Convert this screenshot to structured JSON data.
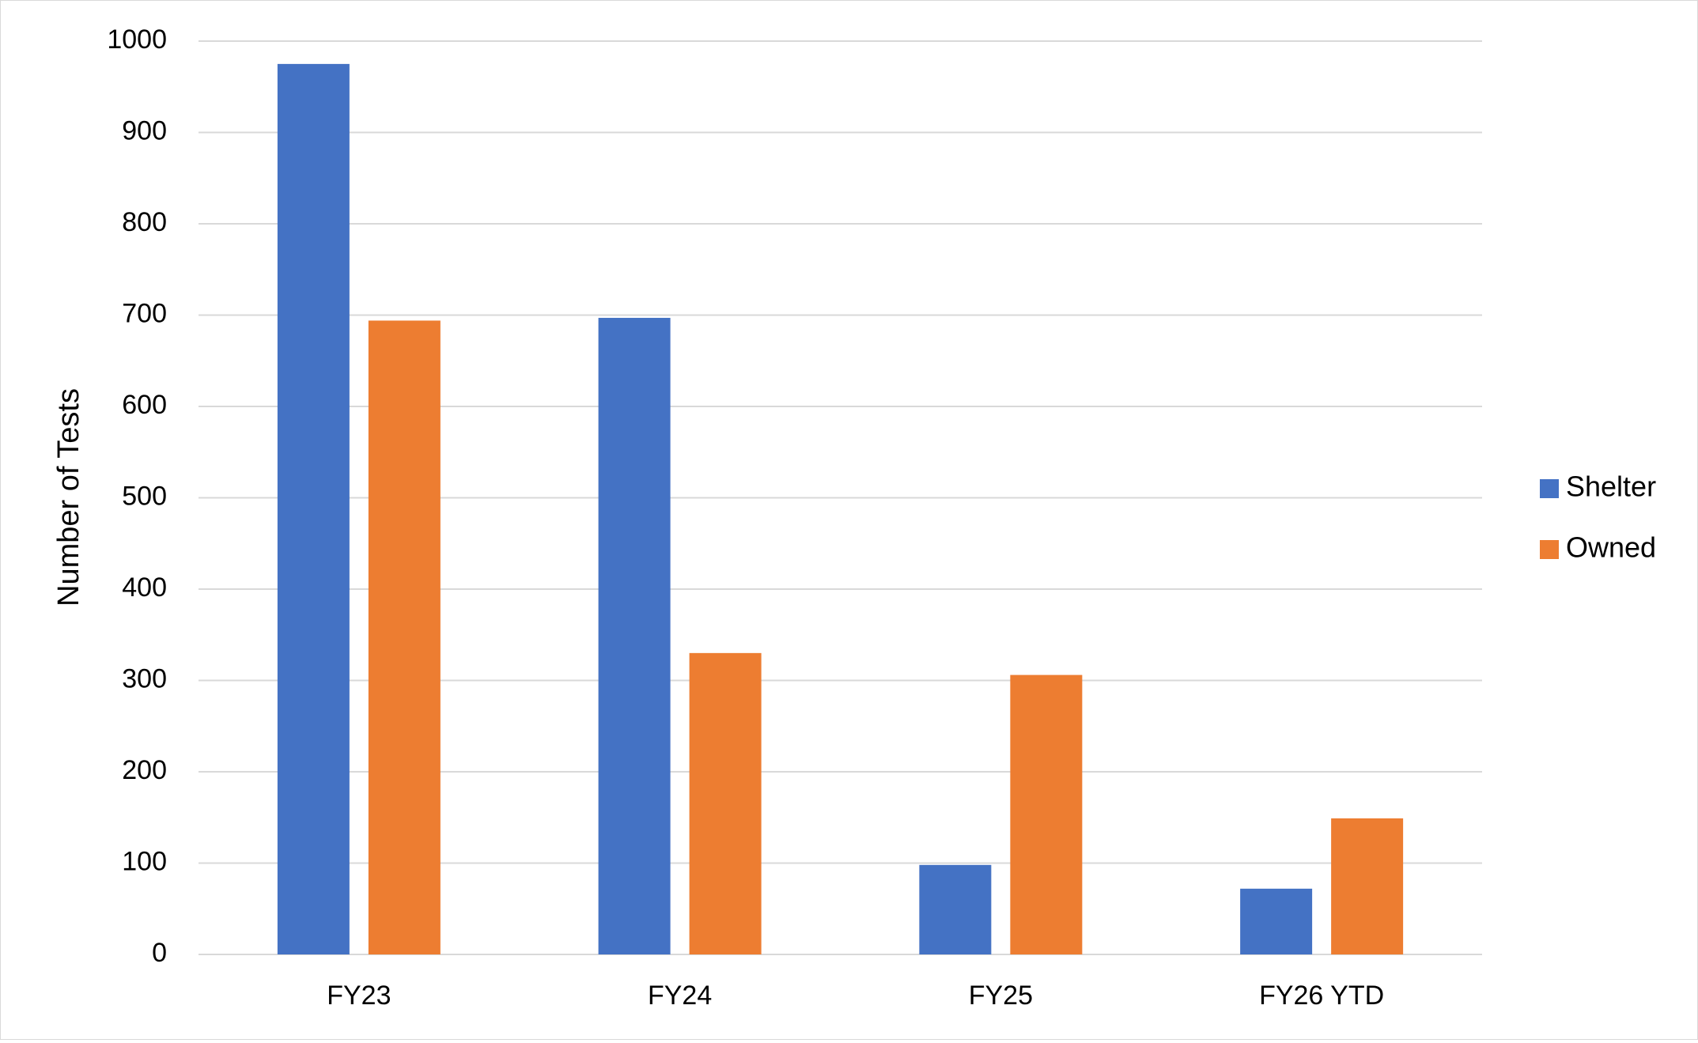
{
  "chart_data": {
    "type": "bar",
    "title": "",
    "xlabel": "",
    "ylabel": "Number of Tests",
    "categories": [
      "FY23",
      "FY24",
      "FY25",
      "FY26 YTD"
    ],
    "series": [
      {
        "name": "Shelter",
        "color": "#4472C4",
        "values": [
          975,
          697,
          98,
          72
        ]
      },
      {
        "name": "Owned",
        "color": "#ED7D31",
        "values": [
          694,
          330,
          306,
          149
        ]
      }
    ],
    "ylim": [
      0,
      1000
    ],
    "yticks": [
      0,
      100,
      200,
      300,
      400,
      500,
      600,
      700,
      800,
      900,
      1000
    ],
    "grid": true,
    "gridline_color": "#d9d9d9",
    "legend_position": "right"
  }
}
